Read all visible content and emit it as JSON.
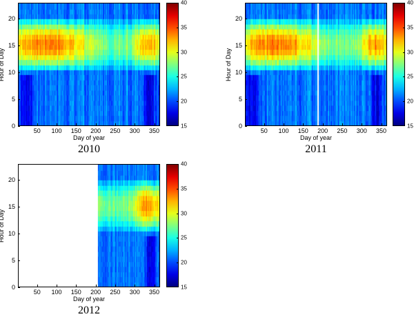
{
  "chart_data": [
    {
      "type": "heatmap",
      "caption": "2010",
      "xlabel": "Day of year",
      "ylabel": "Hour of Day",
      "xlim": [
        1,
        365
      ],
      "ylim": [
        0,
        23
      ],
      "xticks": [
        50,
        100,
        150,
        200,
        250,
        300,
        350
      ],
      "yticks": [
        0,
        5,
        10,
        15,
        20
      ],
      "colorbar": {
        "min": 15,
        "max": 40,
        "ticks": [
          15,
          20,
          25,
          30,
          35,
          40
        ]
      },
      "data_days": [
        1,
        365
      ],
      "gaps": []
    },
    {
      "type": "heatmap",
      "caption": "2011",
      "xlabel": "Day of year",
      "ylabel": "Hour of Day",
      "xlim": [
        1,
        365
      ],
      "ylim": [
        0,
        23
      ],
      "xticks": [
        50,
        100,
        150,
        200,
        250,
        300,
        350
      ],
      "yticks": [
        0,
        5,
        10,
        15,
        20
      ],
      "colorbar": {
        "min": 15,
        "max": 40,
        "ticks": [
          15,
          20,
          25,
          30,
          35,
          40
        ]
      },
      "data_days": [
        1,
        365
      ],
      "gaps": [
        [
          186,
          190
        ]
      ]
    },
    {
      "type": "heatmap",
      "caption": "2012",
      "xlabel": "Day of year",
      "ylabel": "Hour of Day",
      "xlim": [
        1,
        365
      ],
      "ylim": [
        0,
        23
      ],
      "xticks": [
        50,
        100,
        150,
        200,
        250,
        300,
        350
      ],
      "yticks": [
        0,
        5,
        10,
        15,
        20
      ],
      "colorbar": {
        "min": 15,
        "max": 40,
        "ticks": [
          15,
          20,
          25,
          30,
          35,
          40
        ]
      },
      "data_days": [
        205,
        365
      ],
      "gaps": []
    }
  ]
}
